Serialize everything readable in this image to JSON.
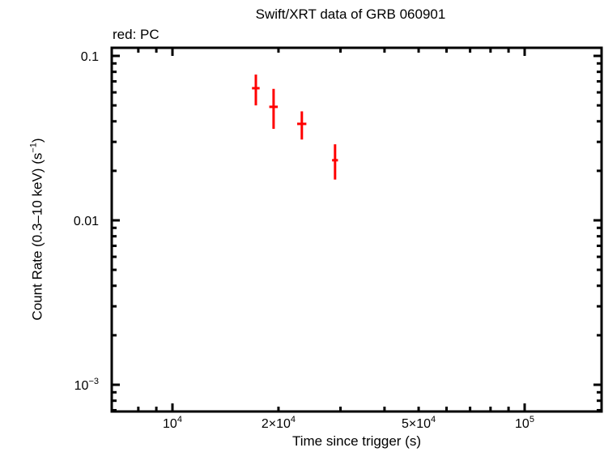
{
  "title": "Swift/XRT data of GRB 060901",
  "legend_note": "red: PC",
  "xlabel": "Time since trigger (s)",
  "ylabel": "Count Rate (0.3–10 keV) (s⁻¹)",
  "colors": {
    "series": "#ff0000",
    "axes": "#000000",
    "background": "#ffffff"
  },
  "chart_data": {
    "type": "scatter",
    "title": "Swift/XRT data of GRB 060901",
    "subtitle": "red: PC",
    "xlabel": "Time since trigger (s)",
    "ylabel": "Count Rate (0.3–10 keV) (s^-1)",
    "xscale": "log",
    "yscale": "log",
    "xlim": [
      7500,
      180000
    ],
    "ylim": [
      0.0007,
      0.115
    ],
    "x_ticks": [
      {
        "value": 10000,
        "label": "10^4"
      },
      {
        "value": 20000,
        "label": "2×10^4"
      },
      {
        "value": 50000,
        "label": "5×10^4"
      },
      {
        "value": 100000,
        "label": "10^5"
      }
    ],
    "y_ticks": [
      {
        "value": 0.1,
        "label": "0.1"
      },
      {
        "value": 0.01,
        "label": "0.01"
      },
      {
        "value": 0.001,
        "label": "10^-3"
      }
    ],
    "grid": false,
    "series": [
      {
        "name": "PC",
        "color": "#ff0000",
        "points": [
          {
            "t": 17250,
            "t_err_lo": 430,
            "t_err_hi": 430,
            "rate": 0.0636,
            "rate_err_lo": 0.0136,
            "rate_err_hi": 0.0134
          },
          {
            "t": 19370,
            "t_err_lo": 540,
            "t_err_hi": 540,
            "rate": 0.049,
            "rate_err_lo": 0.013,
            "rate_err_hi": 0.014
          },
          {
            "t": 23300,
            "t_err_lo": 700,
            "t_err_hi": 700,
            "rate": 0.0386,
            "rate_err_lo": 0.0076,
            "rate_err_hi": 0.0074
          },
          {
            "t": 28950,
            "t_err_lo": 560,
            "t_err_hi": 560,
            "rate": 0.0232,
            "rate_err_lo": 0.0055,
            "rate_err_hi": 0.0058
          }
        ]
      }
    ]
  }
}
